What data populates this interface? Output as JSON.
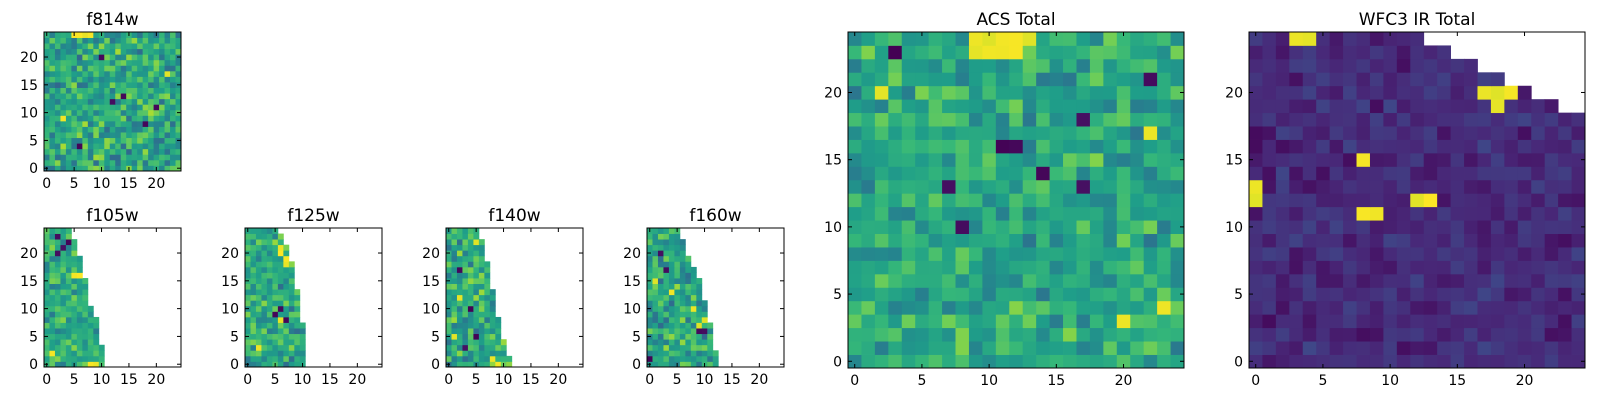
{
  "figure": {
    "background": "#ffffff",
    "colormap": "viridis",
    "colormap_stops": [
      "#440154",
      "#482878",
      "#3e4989",
      "#31688e",
      "#26828e",
      "#1f9e89",
      "#35b779",
      "#6ece58",
      "#b5de2b",
      "#fde725"
    ]
  },
  "chart_data": [
    {
      "id": "f814w",
      "type": "heatmap",
      "title": "f814w",
      "grid_size": 25,
      "xlim": [
        -0.5,
        24.5
      ],
      "ylim": [
        -0.5,
        24.5
      ],
      "xticks": [
        0,
        5,
        10,
        15,
        20
      ],
      "yticks": [
        0,
        5,
        10,
        15,
        20
      ],
      "value_range": [
        0,
        1
      ],
      "coverage": "full",
      "typical_value": 0.6,
      "spread": 0.18,
      "minima": [
        [
          10,
          20
        ],
        [
          14,
          13
        ],
        [
          6,
          4
        ],
        [
          18,
          8
        ],
        [
          20,
          11
        ],
        [
          12,
          12
        ]
      ],
      "maxima": [
        [
          5,
          24
        ],
        [
          6,
          24
        ],
        [
          7,
          24
        ],
        [
          8,
          24
        ],
        [
          22,
          17
        ],
        [
          3,
          9
        ]
      ]
    },
    {
      "id": "f105w",
      "type": "heatmap",
      "title": "f105w",
      "grid_size": 25,
      "xlim": [
        -0.5,
        24.5
      ],
      "ylim": [
        -0.5,
        24.5
      ],
      "xticks": [
        0,
        5,
        10,
        15,
        20
      ],
      "yticks": [
        0,
        5,
        10,
        15,
        20
      ],
      "value_range": [
        0,
        1
      ],
      "coverage": "left_wedge",
      "coverage_right_edge": [
        [
          0,
          10
        ],
        [
          7,
          9
        ],
        [
          12,
          7
        ],
        [
          18,
          6
        ],
        [
          24,
          4
        ]
      ],
      "typical_value": 0.62,
      "spread": 0.15,
      "minima": [
        [
          2,
          23
        ],
        [
          3,
          21
        ],
        [
          4,
          22
        ],
        [
          2,
          20
        ]
      ],
      "maxima": [
        [
          5,
          16
        ],
        [
          6,
          16
        ],
        [
          1,
          2
        ],
        [
          8,
          0
        ],
        [
          9,
          0
        ]
      ]
    },
    {
      "id": "f125w",
      "type": "heatmap",
      "title": "f125w",
      "grid_size": 25,
      "xlim": [
        -0.5,
        24.5
      ],
      "ylim": [
        -0.5,
        24.5
      ],
      "xticks": [
        0,
        5,
        10,
        15,
        20
      ],
      "yticks": [
        0,
        5,
        10,
        15,
        20
      ],
      "value_range": [
        0,
        1
      ],
      "coverage": "left_wedge",
      "coverage_right_edge": [
        [
          0,
          10
        ],
        [
          5,
          10
        ],
        [
          10,
          9
        ],
        [
          16,
          8
        ],
        [
          20,
          7
        ],
        [
          24,
          5
        ]
      ],
      "typical_value": 0.6,
      "spread": 0.16,
      "minima": [
        [
          5,
          9
        ],
        [
          6,
          10
        ],
        [
          7,
          8
        ]
      ],
      "maxima": [
        [
          6,
          21
        ],
        [
          6,
          20
        ],
        [
          7,
          19
        ],
        [
          7,
          18
        ],
        [
          6,
          8
        ],
        [
          2,
          3
        ]
      ]
    },
    {
      "id": "f140w",
      "type": "heatmap",
      "title": "f140w",
      "grid_size": 25,
      "xlim": [
        -0.5,
        24.5
      ],
      "ylim": [
        -0.5,
        24.5
      ],
      "xticks": [
        0,
        5,
        10,
        15,
        20
      ],
      "yticks": [
        0,
        5,
        10,
        15,
        20
      ],
      "value_range": [
        0,
        1
      ],
      "coverage": "left_wedge",
      "coverage_right_edge": [
        [
          0,
          11
        ],
        [
          6,
          9
        ],
        [
          11,
          8
        ],
        [
          16,
          7
        ],
        [
          20,
          6
        ],
        [
          24,
          5
        ]
      ],
      "typical_value": 0.6,
      "spread": 0.17,
      "minima": [
        [
          4,
          10
        ],
        [
          3,
          3
        ],
        [
          5,
          5
        ],
        [
          2,
          17
        ]
      ],
      "maxima": [
        [
          5,
          22
        ],
        [
          8,
          1
        ],
        [
          9,
          0
        ],
        [
          2,
          12
        ],
        [
          1,
          5
        ]
      ]
    },
    {
      "id": "f160w",
      "type": "heatmap",
      "title": "f160w",
      "grid_size": 25,
      "xlim": [
        -0.5,
        24.5
      ],
      "ylim": [
        -0.5,
        24.5
      ],
      "xticks": [
        0,
        5,
        10,
        15,
        20
      ],
      "yticks": [
        0,
        5,
        10,
        15,
        20
      ],
      "value_range": [
        0,
        1
      ],
      "coverage": "left_wedge",
      "coverage_right_edge": [
        [
          0,
          12
        ],
        [
          5,
          11
        ],
        [
          9,
          10
        ],
        [
          14,
          9
        ],
        [
          18,
          7
        ],
        [
          24,
          5
        ]
      ],
      "typical_value": 0.6,
      "spread": 0.17,
      "minima": [
        [
          9,
          6
        ],
        [
          10,
          6
        ],
        [
          0,
          1
        ],
        [
          3,
          17
        ],
        [
          2,
          20
        ]
      ],
      "maxima": [
        [
          9,
          7
        ],
        [
          10,
          8
        ],
        [
          4,
          13
        ],
        [
          1,
          15
        ],
        [
          8,
          10
        ]
      ]
    },
    {
      "id": "acs_total",
      "type": "heatmap",
      "title": "ACS Total",
      "grid_size": 25,
      "xlim": [
        -0.5,
        24.5
      ],
      "ylim": [
        -0.5,
        24.5
      ],
      "xticks": [
        0,
        5,
        10,
        15,
        20
      ],
      "yticks": [
        0,
        5,
        10,
        15,
        20
      ],
      "value_range": [
        0,
        1
      ],
      "coverage": "full",
      "typical_value": 0.6,
      "spread": 0.14,
      "minima": [
        [
          7,
          13
        ],
        [
          8,
          10
        ],
        [
          11,
          16
        ],
        [
          12,
          16
        ],
        [
          14,
          14
        ],
        [
          17,
          18
        ],
        [
          3,
          23
        ],
        [
          22,
          21
        ],
        [
          17,
          13
        ]
      ],
      "maxima": [
        [
          9,
          24
        ],
        [
          10,
          24
        ],
        [
          11,
          24
        ],
        [
          12,
          24
        ],
        [
          13,
          24
        ],
        [
          9,
          23
        ],
        [
          10,
          23
        ],
        [
          11,
          23
        ],
        [
          12,
          23
        ],
        [
          2,
          20
        ],
        [
          22,
          17
        ],
        [
          20,
          3
        ],
        [
          23,
          4
        ]
      ]
    },
    {
      "id": "wfc3_ir_total",
      "type": "heatmap",
      "title": "WFC3 IR Total",
      "grid_size": 25,
      "xlim": [
        -0.5,
        24.5
      ],
      "ylim": [
        -0.5,
        24.5
      ],
      "xticks": [
        0,
        5,
        10,
        15,
        20
      ],
      "yticks": [
        0,
        5,
        10,
        15,
        20
      ],
      "value_range": [
        0,
        1
      ],
      "coverage": "upper_right_cut",
      "coverage_cut": [
        [
          11,
          24
        ],
        [
          24,
          18
        ]
      ],
      "typical_value": 0.12,
      "spread": 0.06,
      "minima": [],
      "maxima": [
        [
          17,
          20
        ],
        [
          18,
          20
        ],
        [
          19,
          20
        ],
        [
          12,
          12
        ],
        [
          13,
          12
        ],
        [
          9,
          11
        ],
        [
          8,
          11
        ],
        [
          0,
          13
        ],
        [
          0,
          12
        ],
        [
          8,
          15
        ],
        [
          3,
          24
        ],
        [
          4,
          24
        ],
        [
          18,
          19
        ]
      ]
    }
  ]
}
